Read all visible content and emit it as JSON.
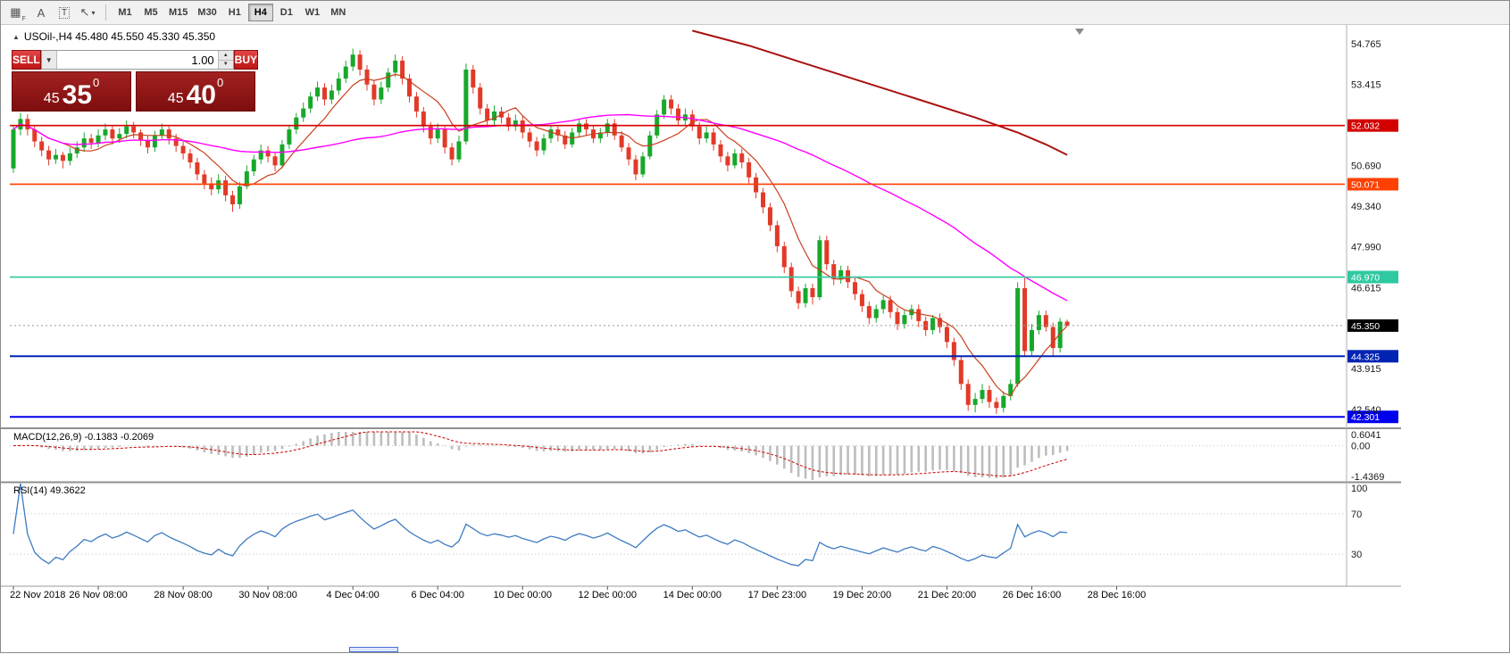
{
  "toolbar": {
    "icons": [
      {
        "name": "grid-tool",
        "glyph": "▦",
        "sub": "F"
      },
      {
        "name": "text-tool",
        "glyph": "A",
        "sub": ""
      },
      {
        "name": "textbox-tool",
        "glyph": "T",
        "sub": ""
      },
      {
        "name": "arrows-tool",
        "glyph": "↖",
        "sub": "▾"
      }
    ],
    "timeframes": [
      "M1",
      "M5",
      "M15",
      "M30",
      "H1",
      "H4",
      "D1",
      "W1",
      "MN"
    ],
    "active_timeframe": "H4"
  },
  "chart": {
    "cursor_glyph": "▲",
    "title": "USOil-,H4 45.480 45.550 45.330 45.350",
    "symbol": "USOil-",
    "period": "H4",
    "ohlc": {
      "open": "45.480",
      "high": "45.550",
      "low": "45.330",
      "close": "45.350"
    }
  },
  "trade": {
    "sell_label": "SELL",
    "buy_label": "BUY",
    "volume": "1.00",
    "drop_glyph": "▼",
    "up_glyph": "▲",
    "down_glyph": "▼",
    "sell_price": {
      "prefix": "45",
      "big": "35",
      "sup": "0"
    },
    "buy_price": {
      "prefix": "45",
      "big": "40",
      "sup": "0"
    }
  },
  "macd": {
    "label": "MACD(12,26,9) -0.1383 -0.2069",
    "scale": [
      "0.6041",
      "0.00",
      "-1.4369"
    ],
    "scale_max": 0.6041,
    "scale_min": -1.4369
  },
  "rsi": {
    "label": "RSI(14) 49.3622",
    "scale": [
      "100",
      "70",
      "30"
    ]
  },
  "chart_data": {
    "type": "candlestick",
    "symbol": "USOil-",
    "timeframe": "H4",
    "ylim": [
      41.95,
      55.3
    ],
    "grid": false,
    "colors": {
      "candle_up": "#17a82b",
      "candle_down": "#e23a28",
      "ma_fast": "#c8401e",
      "ma_slow": "#ff00ff",
      "trend": "#aa1111",
      "rsi_line": "#3e7bc0",
      "macd_hist": "#bdbdbd",
      "macd_signal": "#cc0000",
      "axis_text": "#1a1a1a"
    },
    "ma_fast_period": 8,
    "ma_slow_period": 50,
    "current_price": {
      "value": 45.35,
      "label": "45.350"
    },
    "y_ticks": [
      "54.765",
      "53.415",
      "50.690",
      "49.340",
      "47.990",
      "46.615",
      "43.915",
      "42.540"
    ],
    "levels": [
      {
        "price": 52.032,
        "label": "52.032",
        "color": "#d40000",
        "width": 1.6
      },
      {
        "price": 50.071,
        "label": "50.071",
        "color": "#ff4000",
        "width": 1.6
      },
      {
        "price": 46.97,
        "label": "46.970",
        "color": "#2fc9a0",
        "width": 1.6
      },
      {
        "price": 44.325,
        "label": "44.325",
        "color": "#0023b4",
        "width": 2
      },
      {
        "price": 42.301,
        "label": "42.301",
        "color": "#0000ee",
        "width": 2
      }
    ],
    "trend_line": [
      [
        96,
        55.2
      ],
      [
        104,
        54.7
      ],
      [
        112,
        54.1
      ],
      [
        120,
        53.5
      ],
      [
        128,
        52.9
      ],
      [
        136,
        52.3
      ],
      [
        142,
        51.8
      ],
      [
        146,
        51.4
      ],
      [
        149,
        51.05
      ]
    ],
    "x_labels": [
      {
        "text": "22 Nov 2018",
        "bar": 0
      },
      {
        "text": "26 Nov 08:00",
        "bar": 12
      },
      {
        "text": "28 Nov 08:00",
        "bar": 24
      },
      {
        "text": "30 Nov 08:00",
        "bar": 36
      },
      {
        "text": "4 Dec 04:00",
        "bar": 48
      },
      {
        "text": "6 Dec 04:00",
        "bar": 60
      },
      {
        "text": "10 Dec 00:00",
        "bar": 72
      },
      {
        "text": "12 Dec 00:00",
        "bar": 84
      },
      {
        "text": "14 Dec 00:00",
        "bar": 96
      },
      {
        "text": "17 Dec 23:00",
        "bar": 108
      },
      {
        "text": "19 Dec 20:00",
        "bar": 120
      },
      {
        "text": "21 Dec 20:00",
        "bar": 132
      },
      {
        "text": "26 Dec 16:00",
        "bar": 144
      },
      {
        "text": "28 Dec 16:00",
        "bar": 156
      }
    ],
    "candles": [
      [
        50.6,
        52.05,
        50.45,
        51.9
      ],
      [
        51.9,
        52.45,
        51.7,
        52.25
      ],
      [
        52.25,
        52.4,
        51.7,
        51.9
      ],
      [
        51.9,
        52.05,
        51.3,
        51.5
      ],
      [
        51.5,
        51.65,
        51.0,
        51.2
      ],
      [
        51.2,
        51.35,
        50.7,
        50.9
      ],
      [
        50.9,
        51.25,
        50.75,
        51.05
      ],
      [
        51.05,
        51.15,
        50.6,
        50.85
      ],
      [
        50.85,
        51.3,
        50.7,
        51.1
      ],
      [
        51.1,
        51.5,
        50.95,
        51.3
      ],
      [
        51.3,
        51.8,
        51.15,
        51.6
      ],
      [
        51.6,
        51.75,
        51.25,
        51.45
      ],
      [
        51.45,
        51.9,
        51.3,
        51.7
      ],
      [
        51.7,
        52.1,
        51.55,
        51.9
      ],
      [
        51.9,
        52.0,
        51.4,
        51.6
      ],
      [
        51.6,
        51.95,
        51.45,
        51.75
      ],
      [
        51.75,
        52.2,
        51.6,
        52.0
      ],
      [
        52.0,
        52.15,
        51.6,
        51.8
      ],
      [
        51.8,
        51.9,
        51.35,
        51.55
      ],
      [
        51.55,
        51.7,
        51.1,
        51.3
      ],
      [
        51.3,
        51.85,
        51.15,
        51.7
      ],
      [
        51.7,
        52.1,
        51.55,
        51.9
      ],
      [
        51.9,
        52.0,
        51.4,
        51.6
      ],
      [
        51.6,
        51.75,
        51.15,
        51.35
      ],
      [
        51.35,
        51.5,
        50.9,
        51.1
      ],
      [
        51.1,
        51.25,
        50.6,
        50.8
      ],
      [
        50.8,
        50.95,
        50.2,
        50.4
      ],
      [
        50.4,
        50.55,
        49.9,
        50.1
      ],
      [
        50.1,
        50.3,
        49.7,
        49.9
      ],
      [
        49.9,
        50.4,
        49.75,
        50.2
      ],
      [
        50.2,
        50.35,
        49.5,
        49.7
      ],
      [
        49.7,
        49.85,
        49.15,
        49.4
      ],
      [
        49.4,
        50.15,
        49.25,
        50.0
      ],
      [
        50.0,
        50.7,
        49.9,
        50.5
      ],
      [
        50.5,
        51.05,
        50.35,
        50.9
      ],
      [
        50.9,
        51.4,
        50.75,
        51.2
      ],
      [
        51.2,
        51.35,
        50.8,
        51.0
      ],
      [
        51.0,
        51.15,
        50.5,
        50.7
      ],
      [
        50.7,
        51.55,
        50.6,
        51.4
      ],
      [
        51.4,
        52.05,
        51.25,
        51.9
      ],
      [
        51.9,
        52.45,
        51.75,
        52.3
      ],
      [
        52.3,
        52.8,
        52.15,
        52.6
      ],
      [
        52.6,
        53.15,
        52.45,
        53.0
      ],
      [
        53.0,
        53.5,
        52.85,
        53.3
      ],
      [
        53.3,
        53.45,
        52.7,
        52.9
      ],
      [
        52.9,
        53.4,
        52.75,
        53.2
      ],
      [
        53.2,
        53.8,
        53.05,
        53.6
      ],
      [
        53.6,
        54.2,
        53.45,
        54.0
      ],
      [
        54.0,
        54.6,
        53.85,
        54.4
      ],
      [
        54.4,
        54.55,
        53.7,
        53.9
      ],
      [
        53.9,
        54.05,
        53.2,
        53.4
      ],
      [
        53.4,
        53.55,
        52.7,
        52.9
      ],
      [
        52.9,
        53.5,
        52.75,
        53.3
      ],
      [
        53.3,
        53.95,
        53.15,
        53.8
      ],
      [
        53.8,
        54.4,
        53.65,
        54.2
      ],
      [
        54.2,
        54.35,
        53.4,
        53.6
      ],
      [
        53.6,
        53.75,
        52.8,
        53.0
      ],
      [
        53.0,
        53.15,
        52.3,
        52.5
      ],
      [
        52.5,
        52.65,
        51.8,
        52.0
      ],
      [
        52.0,
        52.15,
        51.4,
        51.6
      ],
      [
        51.6,
        52.1,
        51.45,
        51.9
      ],
      [
        51.9,
        52.0,
        51.1,
        51.3
      ],
      [
        51.3,
        51.45,
        50.7,
        50.9
      ],
      [
        50.9,
        51.7,
        50.8,
        51.5
      ],
      [
        51.5,
        54.1,
        51.4,
        53.9
      ],
      [
        53.9,
        54.05,
        53.1,
        53.3
      ],
      [
        53.3,
        53.45,
        52.4,
        52.6
      ],
      [
        52.6,
        52.75,
        52.0,
        52.2
      ],
      [
        52.2,
        52.7,
        52.05,
        52.5
      ],
      [
        52.5,
        52.65,
        52.1,
        52.3
      ],
      [
        52.3,
        52.45,
        51.85,
        52.0
      ],
      [
        52.0,
        52.4,
        51.85,
        52.2
      ],
      [
        52.2,
        52.35,
        51.6,
        51.8
      ],
      [
        51.8,
        51.95,
        51.3,
        51.5
      ],
      [
        51.5,
        51.65,
        51.0,
        51.2
      ],
      [
        51.2,
        51.75,
        51.05,
        51.6
      ],
      [
        51.6,
        52.05,
        51.45,
        51.9
      ],
      [
        51.9,
        52.0,
        51.5,
        51.7
      ],
      [
        51.7,
        51.85,
        51.25,
        51.4
      ],
      [
        51.4,
        51.95,
        51.3,
        51.8
      ],
      [
        51.8,
        52.25,
        51.65,
        52.1
      ],
      [
        52.1,
        52.25,
        51.7,
        51.9
      ],
      [
        51.9,
        52.05,
        51.45,
        51.6
      ],
      [
        51.6,
        51.95,
        51.45,
        51.8
      ],
      [
        51.8,
        52.25,
        51.65,
        52.1
      ],
      [
        52.1,
        52.25,
        51.55,
        51.7
      ],
      [
        51.7,
        51.85,
        51.15,
        51.3
      ],
      [
        51.3,
        51.45,
        50.7,
        50.9
      ],
      [
        50.9,
        51.05,
        50.2,
        50.4
      ],
      [
        50.4,
        51.15,
        50.3,
        51.0
      ],
      [
        51.0,
        51.85,
        50.9,
        51.7
      ],
      [
        51.7,
        52.55,
        51.6,
        52.4
      ],
      [
        52.4,
        53.05,
        52.25,
        52.9
      ],
      [
        52.9,
        53.05,
        52.4,
        52.6
      ],
      [
        52.6,
        52.75,
        52.05,
        52.2
      ],
      [
        52.2,
        52.6,
        52.05,
        52.4
      ],
      [
        52.4,
        52.55,
        51.85,
        52.0
      ],
      [
        52.0,
        52.15,
        51.4,
        51.6
      ],
      [
        51.6,
        52.0,
        51.45,
        51.8
      ],
      [
        51.8,
        51.95,
        51.2,
        51.4
      ],
      [
        51.4,
        51.55,
        50.8,
        51.0
      ],
      [
        51.0,
        51.15,
        50.5,
        50.7
      ],
      [
        50.7,
        51.25,
        50.6,
        51.1
      ],
      [
        51.1,
        51.25,
        50.6,
        50.8
      ],
      [
        50.8,
        50.95,
        50.1,
        50.3
      ],
      [
        50.3,
        50.45,
        49.6,
        49.8
      ],
      [
        49.8,
        49.95,
        49.1,
        49.3
      ],
      [
        49.3,
        49.45,
        48.5,
        48.7
      ],
      [
        48.7,
        48.85,
        47.8,
        48.0
      ],
      [
        48.0,
        48.15,
        47.1,
        47.3
      ],
      [
        47.3,
        47.45,
        46.3,
        46.5
      ],
      [
        46.5,
        46.65,
        45.9,
        46.1
      ],
      [
        46.1,
        46.75,
        45.95,
        46.6
      ],
      [
        46.6,
        46.75,
        46.05,
        46.3
      ],
      [
        46.3,
        48.35,
        46.2,
        48.2
      ],
      [
        48.2,
        48.35,
        47.2,
        47.4
      ],
      [
        47.4,
        47.55,
        46.7,
        46.9
      ],
      [
        46.9,
        47.35,
        46.75,
        47.2
      ],
      [
        47.2,
        47.35,
        46.6,
        46.8
      ],
      [
        46.8,
        46.95,
        46.2,
        46.4
      ],
      [
        46.4,
        46.55,
        45.8,
        46.0
      ],
      [
        46.0,
        46.15,
        45.4,
        45.6
      ],
      [
        45.6,
        46.05,
        45.45,
        45.9
      ],
      [
        45.9,
        46.35,
        45.75,
        46.2
      ],
      [
        46.2,
        46.35,
        45.6,
        45.8
      ],
      [
        45.8,
        45.95,
        45.2,
        45.4
      ],
      [
        45.4,
        45.85,
        45.25,
        45.7
      ],
      [
        45.7,
        46.05,
        45.55,
        45.9
      ],
      [
        45.9,
        46.05,
        45.3,
        45.5
      ],
      [
        45.5,
        45.65,
        45.0,
        45.2
      ],
      [
        45.2,
        45.7,
        45.05,
        45.6
      ],
      [
        45.6,
        45.75,
        45.1,
        45.3
      ],
      [
        45.3,
        45.45,
        44.6,
        44.8
      ],
      [
        44.8,
        44.95,
        44.0,
        44.2
      ],
      [
        44.2,
        44.35,
        43.2,
        43.4
      ],
      [
        43.4,
        43.55,
        42.5,
        42.7
      ],
      [
        42.7,
        43.1,
        42.45,
        42.9
      ],
      [
        42.9,
        43.4,
        42.75,
        43.2
      ],
      [
        43.2,
        43.35,
        42.6,
        42.8
      ],
      [
        42.8,
        42.95,
        42.4,
        42.6
      ],
      [
        42.6,
        43.15,
        42.45,
        43.0
      ],
      [
        43.0,
        43.55,
        42.85,
        43.4
      ],
      [
        43.4,
        46.8,
        43.3,
        46.6
      ],
      [
        46.6,
        46.95,
        44.3,
        44.5
      ],
      [
        44.5,
        45.4,
        44.35,
        45.2
      ],
      [
        45.2,
        45.85,
        45.05,
        45.7
      ],
      [
        45.7,
        45.85,
        45.15,
        45.3
      ],
      [
        45.3,
        45.45,
        44.3,
        44.6
      ],
      [
        44.6,
        45.6,
        44.45,
        45.48
      ],
      [
        45.48,
        45.55,
        45.33,
        45.35
      ]
    ]
  }
}
